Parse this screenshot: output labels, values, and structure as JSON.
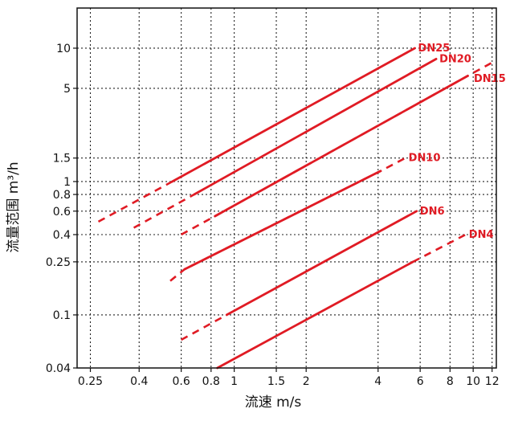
{
  "chart_data": {
    "type": "line",
    "title": "",
    "xlabel": "流速 m/s",
    "ylabel": "流量范围 m³/h",
    "x_scale": "log",
    "y_scale": "log",
    "xlim": [
      0.22,
      12.5
    ],
    "ylim": [
      0.04,
      20
    ],
    "x_ticks": [
      0.25,
      0.4,
      0.6,
      0.8,
      1,
      1.5,
      2,
      4,
      6,
      8,
      10,
      12
    ],
    "x_tick_labels": [
      "0.25",
      "0.4",
      "0.6",
      "0.8",
      "1",
      "1.5",
      "2",
      "4",
      "6",
      "8",
      "10",
      "12"
    ],
    "y_ticks": [
      0.04,
      0.1,
      0.25,
      0.4,
      0.6,
      0.8,
      1,
      1.5,
      5,
      10
    ],
    "y_tick_labels": [
      "0.04",
      "0.1",
      "0.25",
      "0.4",
      "0.6",
      "0.8",
      "1",
      "1.5",
      "5",
      "10"
    ],
    "grid": true,
    "grid_style": "dotted",
    "line_color": "#e01b24",
    "series": [
      {
        "name": "DN25",
        "solid": [
          [
            0.55,
            1.0
          ],
          [
            5.7,
            10.0
          ]
        ],
        "dashed": [
          [
            0.27,
            0.5
          ],
          [
            0.55,
            1.0
          ]
        ]
      },
      {
        "name": "DN20",
        "solid": [
          [
            0.68,
            0.8
          ],
          [
            7.0,
            8.3
          ]
        ],
        "dashed": [
          [
            0.38,
            0.45
          ],
          [
            0.68,
            0.8
          ]
        ]
      },
      {
        "name": "DN15",
        "solid": [
          [
            0.83,
            0.55
          ],
          [
            9.5,
            6.2
          ]
        ],
        "dashed": [
          [
            0.6,
            0.4
          ],
          [
            0.83,
            0.55
          ],
          [
            9.5,
            6.2
          ],
          [
            12.0,
            7.8
          ]
        ]
      },
      {
        "name": "DN10",
        "solid": [
          [
            0.62,
            0.22
          ],
          [
            4.1,
            1.2
          ]
        ],
        "dashed": [
          [
            0.54,
            0.18
          ],
          [
            0.62,
            0.22
          ],
          [
            4.1,
            1.2
          ],
          [
            5.2,
            1.5
          ]
        ]
      },
      {
        "name": "DN6",
        "solid": [
          [
            0.93,
            0.1
          ],
          [
            5.8,
            0.6
          ]
        ],
        "dashed": [
          [
            0.6,
            0.065
          ],
          [
            0.93,
            0.1
          ]
        ]
      },
      {
        "name": "DN4",
        "solid": [
          [
            0.85,
            0.04
          ],
          [
            5.6,
            0.25
          ]
        ],
        "dashed": [
          [
            5.6,
            0.25
          ],
          [
            9.3,
            0.4
          ]
        ]
      }
    ]
  }
}
